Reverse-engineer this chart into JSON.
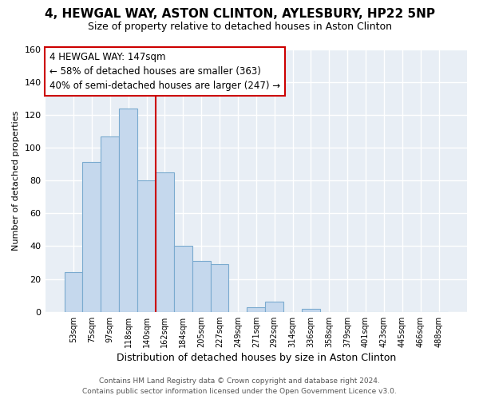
{
  "title": "4, HEWGAL WAY, ASTON CLINTON, AYLESBURY, HP22 5NP",
  "subtitle": "Size of property relative to detached houses in Aston Clinton",
  "xlabel": "Distribution of detached houses by size in Aston Clinton",
  "ylabel": "Number of detached properties",
  "bin_labels": [
    "53sqm",
    "75sqm",
    "97sqm",
    "118sqm",
    "140sqm",
    "162sqm",
    "184sqm",
    "205sqm",
    "227sqm",
    "249sqm",
    "271sqm",
    "292sqm",
    "314sqm",
    "336sqm",
    "358sqm",
    "379sqm",
    "401sqm",
    "423sqm",
    "445sqm",
    "466sqm",
    "488sqm"
  ],
  "bar_heights": [
    24,
    91,
    107,
    124,
    80,
    85,
    40,
    31,
    29,
    0,
    3,
    6,
    0,
    2,
    0,
    0,
    0,
    0,
    0,
    0,
    0
  ],
  "bar_color": "#c5d8ed",
  "bar_edge_color": "#7aaacf",
  "vline_color": "#cc0000",
  "ylim": [
    0,
    160
  ],
  "yticks": [
    0,
    20,
    40,
    60,
    80,
    100,
    120,
    140,
    160
  ],
  "annotation_title": "4 HEWGAL WAY: 147sqm",
  "annotation_line1": "← 58% of detached houses are smaller (363)",
  "annotation_line2": "40% of semi-detached houses are larger (247) →",
  "annotation_box_color": "#ffffff",
  "annotation_box_edge": "#cc0000",
  "bg_color": "#e8eef5",
  "grid_color": "#ffffff",
  "footer_line1": "Contains HM Land Registry data © Crown copyright and database right 2024.",
  "footer_line2": "Contains public sector information licensed under the Open Government Licence v3.0."
}
